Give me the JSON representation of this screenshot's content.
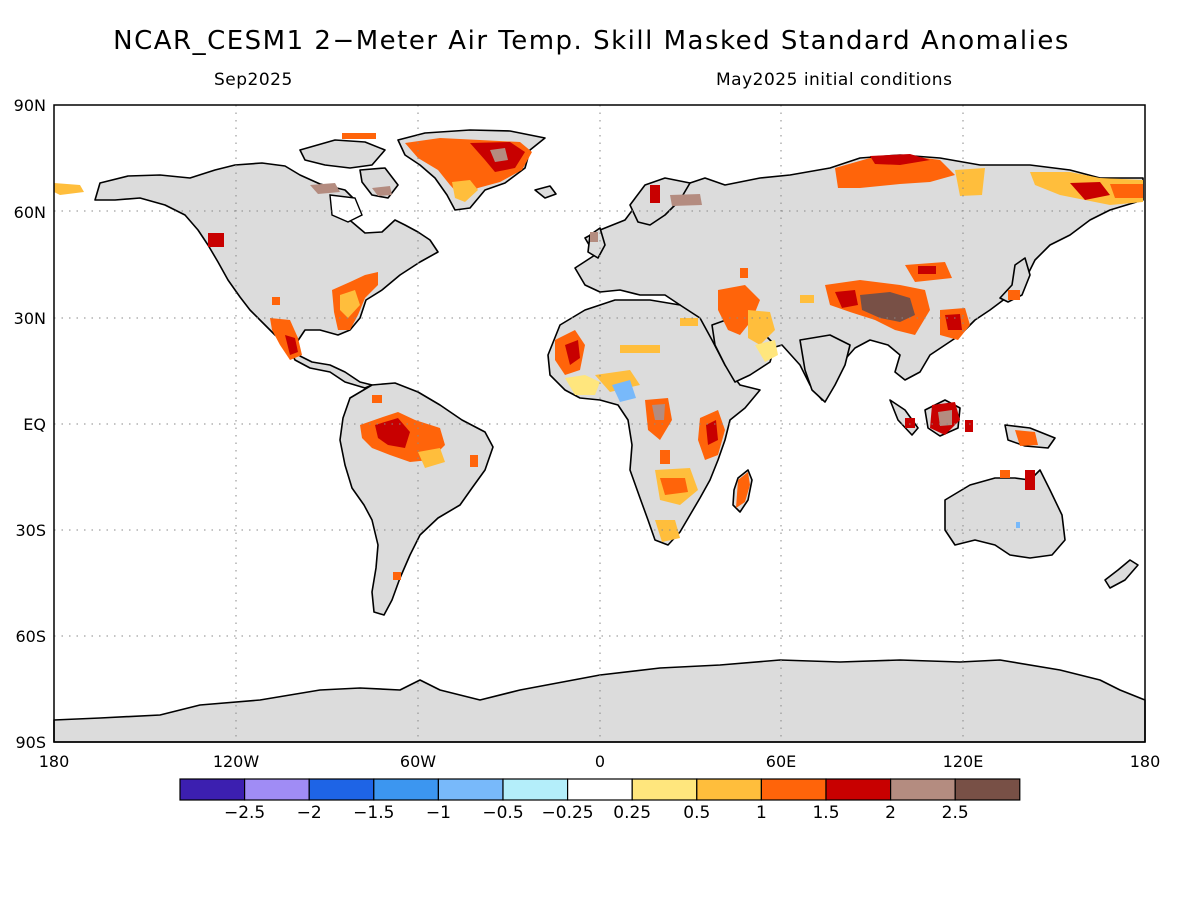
{
  "title": "NCAR_CESM1 2−Meter Air Temp. Skill Masked Standard Anomalies",
  "subtitle_left": "Sep2025",
  "subtitle_right": "May2025 initial conditions",
  "map": {
    "lat_labels": [
      "90N",
      "60N",
      "30N",
      "EQ",
      "30S",
      "60S",
      "90S"
    ],
    "lon_labels": [
      "180",
      "120W",
      "60W",
      "0",
      "60E",
      "120E",
      "180"
    ],
    "land_color": "#dcdcdc",
    "ocean_color": "#ffffff",
    "grid": "dotted"
  },
  "colorbar": {
    "colors": [
      "#3c1fb0",
      "#a08cf5",
      "#1e64e6",
      "#3c96f0",
      "#78b9fa",
      "#b4eefa",
      "#ffffff",
      "#ffe67d",
      "#ffbe3c",
      "#ff640a",
      "#c80000",
      "#b48c80",
      "#785046"
    ],
    "labels": [
      "−2.5",
      "−2",
      "−1.5",
      "−1",
      "−0.5",
      "−0.25",
      "0.25",
      "0.5",
      "1",
      "1.5",
      "2",
      "2.5"
    ]
  },
  "legend_colors": {
    "c05": "#ffe67d",
    "c1": "#ffbe3c",
    "c15": "#ff640a",
    "c2": "#c80000",
    "c25": "#b48c80",
    "c3": "#785046",
    "cneg1": "#78b9fa",
    "cneg2": "#3c96f0"
  }
}
